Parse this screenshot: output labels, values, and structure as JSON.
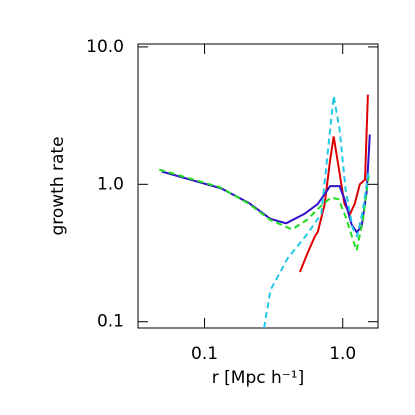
{
  "chart_data": {
    "type": "line",
    "xlabel": "r [Mpc h⁻¹]",
    "ylabel": "growth rate",
    "xscale": "log",
    "yscale": "log",
    "xlim": [
      0.033,
      1.8
    ],
    "ylim": [
      0.09,
      10.5
    ],
    "xticks": [
      0.1,
      {
        "value": 1,
        "label": "1.0"
      }
    ],
    "yticks": [
      0.1,
      {
        "value": 1,
        "label": "1.0"
      },
      {
        "value": 10,
        "label": "10.0"
      }
    ],
    "series": [
      {
        "color": "#dd0000",
        "dashed": false,
        "x": [
          0.49,
          0.56,
          0.63,
          0.66,
          0.74,
          0.81,
          0.86,
          1.03,
          1.13,
          1.22,
          1.33,
          1.45,
          1.52
        ],
        "values": [
          0.23,
          0.32,
          0.42,
          0.45,
          0.72,
          1.5,
          2.23,
          0.72,
          0.61,
          0.72,
          1.0,
          1.08,
          4.5
        ]
      },
      {
        "color": "#3010c8",
        "dashed": false,
        "x": [
          0.049,
          0.133,
          0.21,
          0.3,
          0.39,
          0.53,
          0.66,
          0.81,
          0.95,
          1.03,
          1.16,
          1.26,
          1.37,
          1.49,
          1.57
        ],
        "values": [
          1.24,
          0.93,
          0.73,
          0.56,
          0.52,
          0.61,
          0.72,
          0.97,
          0.97,
          0.78,
          0.51,
          0.45,
          0.49,
          0.89,
          2.3
        ]
      },
      {
        "color": "#22dd22",
        "dashed": true,
        "x": [
          0.047,
          0.13,
          0.21,
          0.3,
          0.43,
          0.55,
          0.7,
          0.82,
          0.93,
          1.05,
          1.2,
          1.26,
          1.4,
          1.55
        ],
        "values": [
          1.28,
          0.95,
          0.72,
          0.55,
          0.47,
          0.55,
          0.7,
          0.8,
          0.78,
          0.58,
          0.38,
          0.33,
          0.55,
          1.2
        ]
      },
      {
        "color": "#22c8e8",
        "dashed": true,
        "x": [
          0.27,
          0.3,
          0.4,
          0.55,
          0.7,
          0.86,
          0.95,
          1.05,
          1.18,
          1.27,
          1.4,
          1.55
        ],
        "values": [
          0.09,
          0.17,
          0.29,
          0.43,
          0.61,
          4.4,
          2.5,
          0.9,
          0.48,
          0.42,
          0.65,
          1.3
        ]
      }
    ]
  }
}
